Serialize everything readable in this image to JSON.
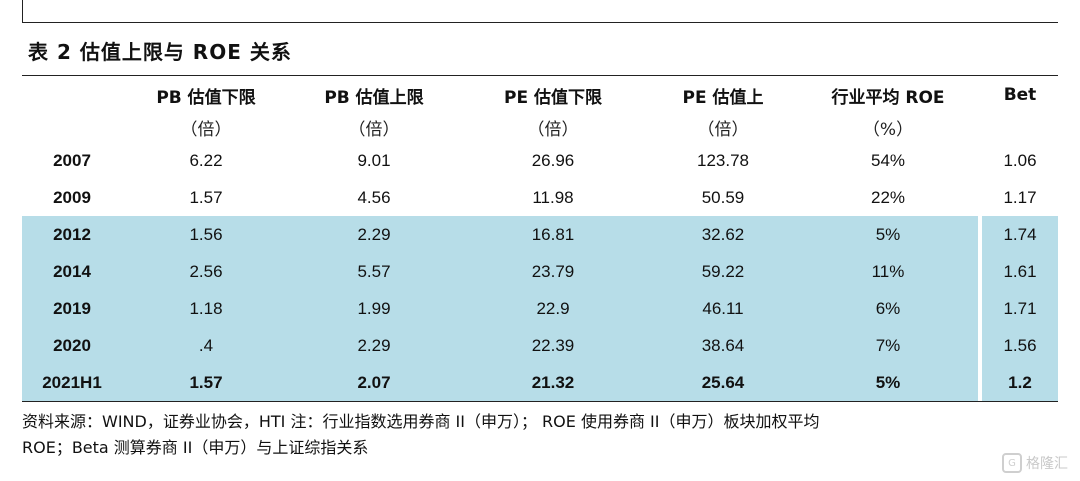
{
  "title": "表 2 估值上限与 ROE 关系",
  "headers": [
    {
      "line1": "",
      "line2": ""
    },
    {
      "line1": "PB 估值下限",
      "line2": "（倍）"
    },
    {
      "line1": "PB 估值上限",
      "line2": "（倍）"
    },
    {
      "line1": "PE 估值下限",
      "line2": "（倍）"
    },
    {
      "line1": "PE 估值上",
      "line2": "（倍）"
    },
    {
      "line1": "行业平均 ROE",
      "line2": "（%）"
    },
    {
      "line1": "Bet",
      "line2": ""
    }
  ],
  "rows": [
    {
      "year": "2007",
      "pb_low": "6.22",
      "pb_high": "9.01",
      "pe_low": "26.96",
      "pe_high": "123.78",
      "roe": "54%",
      "beta": "1.06"
    },
    {
      "year": "2009",
      "pb_low": "1.57",
      "pb_high": "4.56",
      "pe_low": "11.98",
      "pe_high": "50.59",
      "roe": "22%",
      "beta": "1.17"
    },
    {
      "year": "2012",
      "pb_low": "1.56",
      "pb_high": "2.29",
      "pe_low": "16.81",
      "pe_high": "32.62",
      "roe": "5%",
      "beta": "1.74"
    },
    {
      "year": "2014",
      "pb_low": "2.56",
      "pb_high": "5.57",
      "pe_low": "23.79",
      "pe_high": "59.22",
      "roe": "11%",
      "beta": "1.61"
    },
    {
      "year": "2019",
      "pb_low": "1.18",
      "pb_high": "1.99",
      "pe_low": "22.9",
      "pe_high": "46.11",
      "roe": "6%",
      "beta": "1.71"
    },
    {
      "year": "2020",
      "pb_low": ".4",
      "pb_high": "2.29",
      "pe_low": "22.39",
      "pe_high": "38.64",
      "roe": "7%",
      "beta": "1.56"
    },
    {
      "year": "2021H1",
      "pb_low": "1.57",
      "pb_high": "2.07",
      "pe_low": "21.32",
      "pe_high": "25.64",
      "roe": "5%",
      "beta": "1.2"
    }
  ],
  "note_line1": "资料来源：WIND，证券业协会，HTI 注：行业指数选用券商 II（申万）； ROE 使用券商 II（申万）板块加权平均",
  "note_line2": "ROE；Beta 测算券商 II（申万）与上证综指关系",
  "watermark": "格隆汇",
  "colors": {
    "shade": "#b7dde8"
  }
}
